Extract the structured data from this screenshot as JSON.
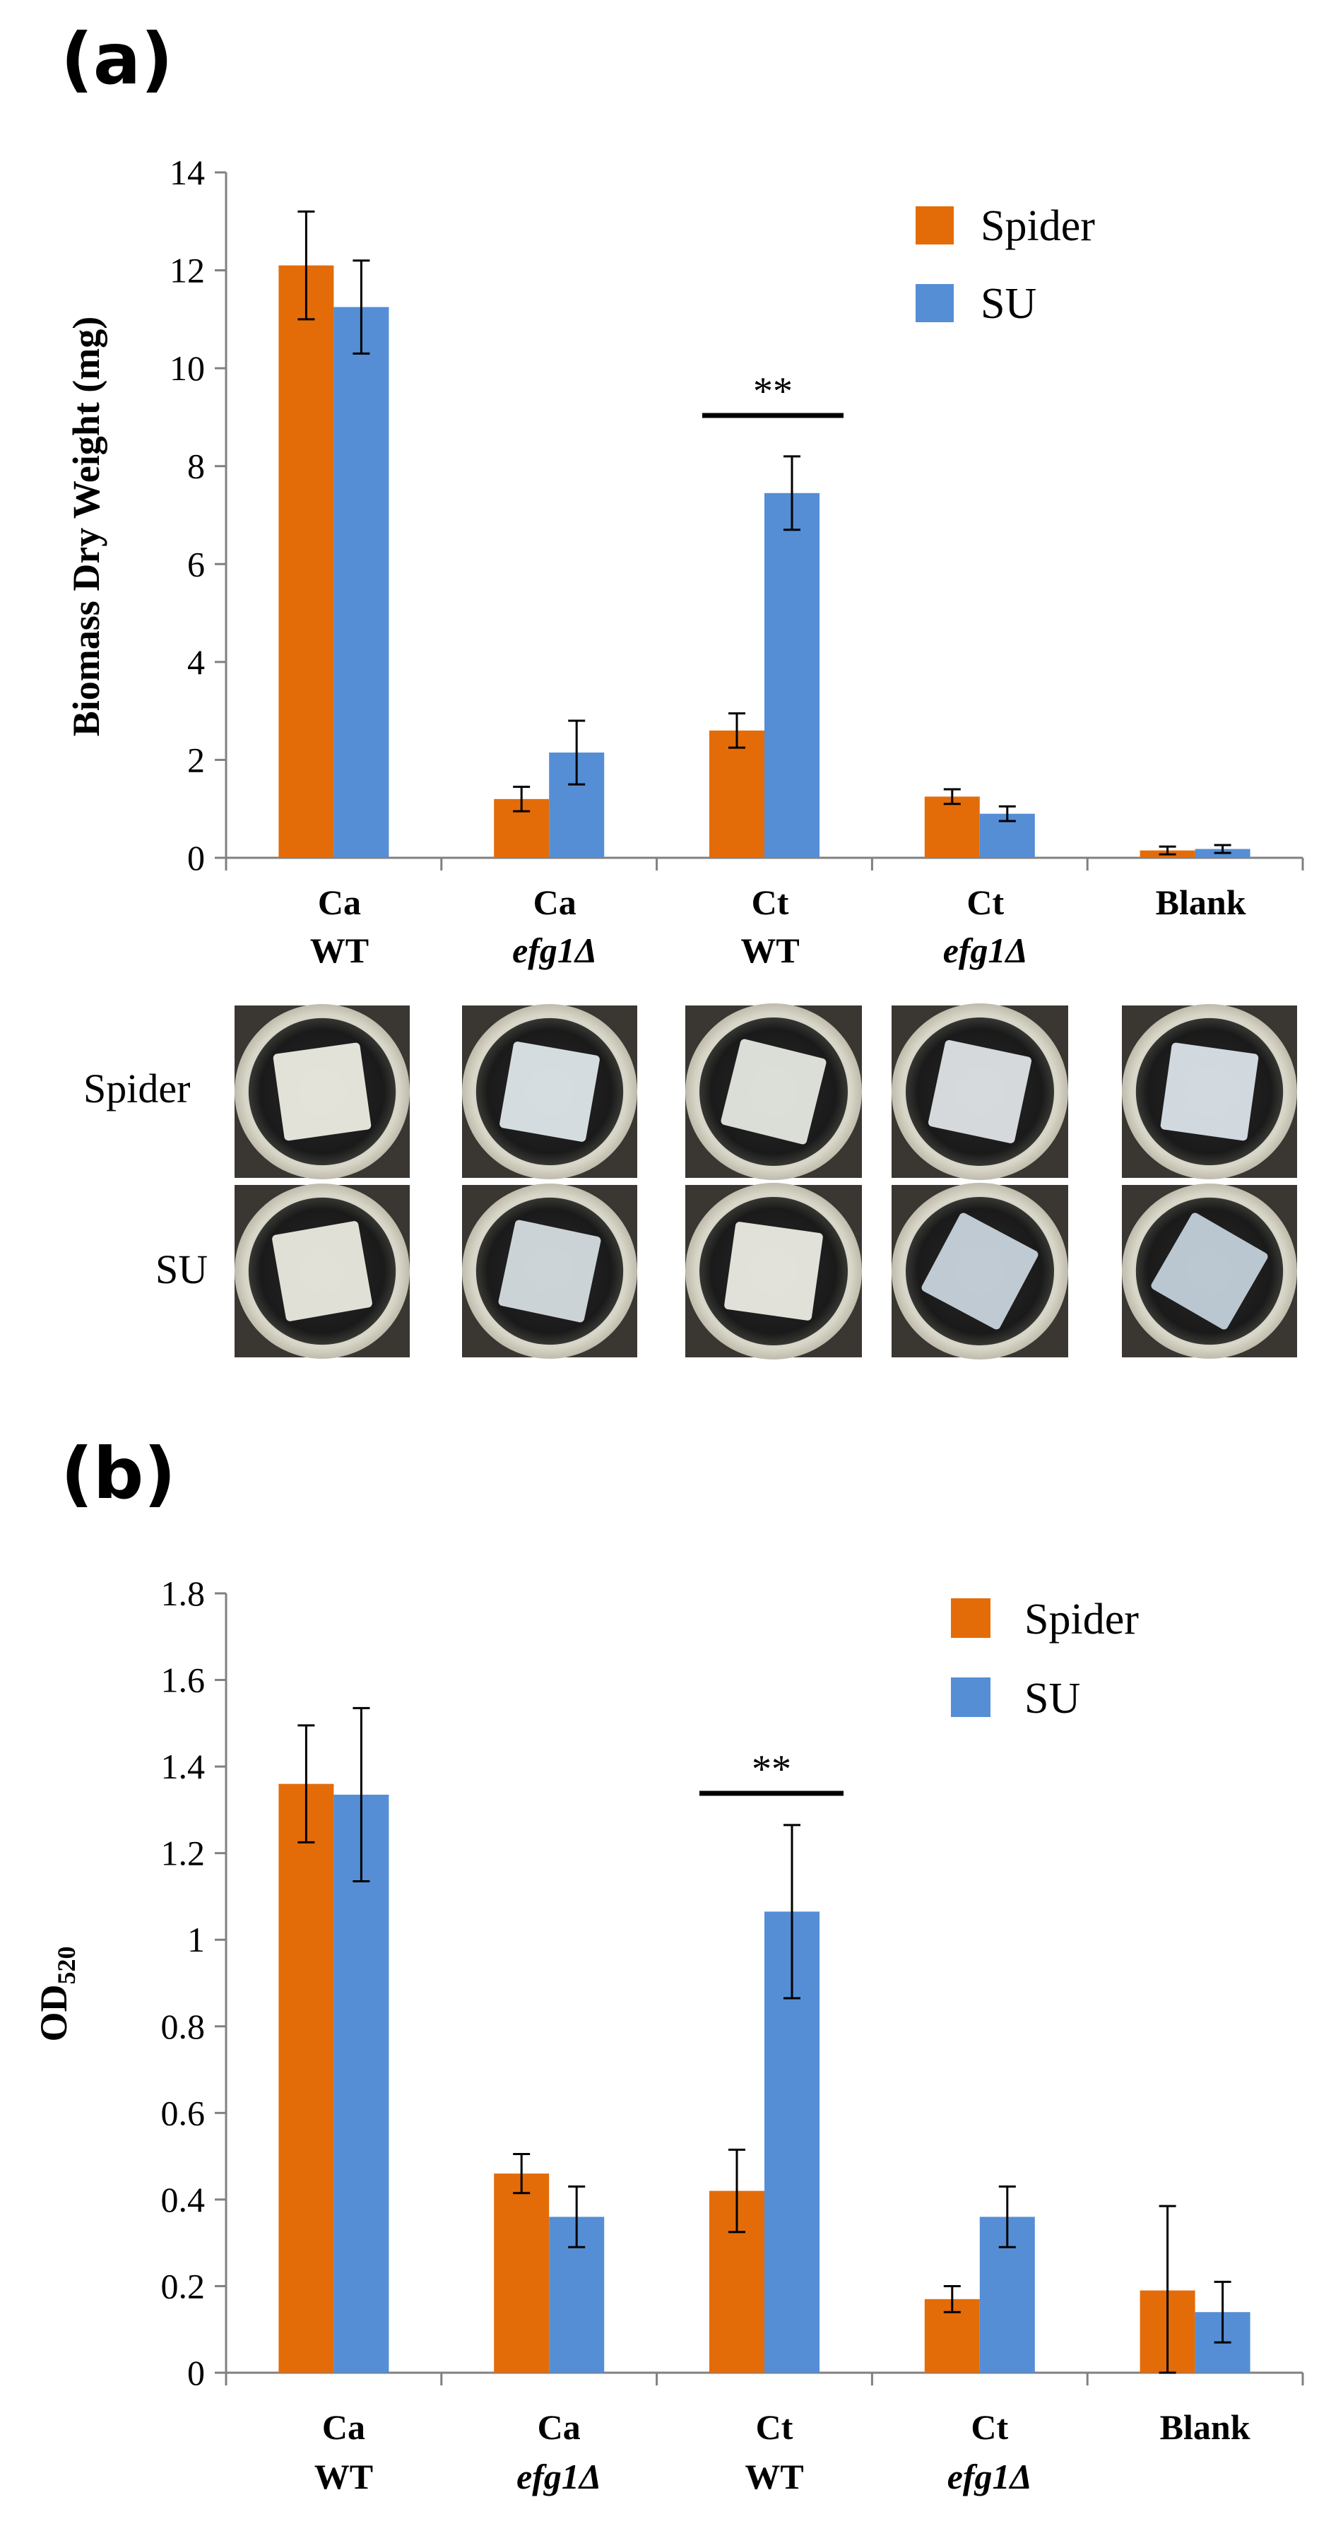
{
  "colors": {
    "spider": "#E36C09",
    "su": "#558ED5",
    "axis": "#808080"
  },
  "panel_a": {
    "label": "(a)",
    "photo_rows": [
      "Spider",
      "SU"
    ]
  },
  "panel_b": {
    "label": "(b)"
  },
  "chart_data": [
    {
      "type": "bar",
      "ylabel": "Biomass Dry Weight (mg)",
      "ylim": [
        0,
        14
      ],
      "yticks": [
        "0",
        "2",
        "4",
        "6",
        "8",
        "10",
        "12",
        "14"
      ],
      "categories": [
        {
          "line1": "Ca",
          "line2": "WT",
          "italic2": false
        },
        {
          "line1": "Ca",
          "line2": "efg1Δ",
          "italic2": true
        },
        {
          "line1": "Ct",
          "line2": "WT",
          "italic2": false
        },
        {
          "line1": "Ct",
          "line2": "efg1Δ",
          "italic2": true
        },
        {
          "line1": "Blank",
          "line2": "",
          "italic2": false
        }
      ],
      "series": [
        {
          "name": "Spider",
          "values": [
            12.1,
            1.2,
            2.6,
            1.25,
            0.15
          ],
          "errors": [
            1.1,
            0.25,
            0.35,
            0.15,
            0.08
          ]
        },
        {
          "name": "SU",
          "values": [
            11.25,
            2.15,
            7.45,
            0.9,
            0.18
          ],
          "errors": [
            0.95,
            0.65,
            0.75,
            0.15,
            0.08
          ]
        }
      ],
      "annotation": {
        "text": "**",
        "category": 2
      },
      "legend_position": "top-right"
    },
    {
      "type": "bar",
      "ylabel_main": "OD",
      "ylabel_sub": "520",
      "ylim": [
        0,
        1.8
      ],
      "yticks": [
        "0",
        "0.2",
        "0.4",
        "0.6",
        "0.8",
        "1",
        "1.2",
        "1.4",
        "1.6",
        "1.8"
      ],
      "categories": [
        {
          "line1": "Ca",
          "line2": "WT",
          "italic2": false
        },
        {
          "line1": "Ca",
          "line2": "efg1Δ",
          "italic2": true
        },
        {
          "line1": "Ct",
          "line2": "WT",
          "italic2": false
        },
        {
          "line1": "Ct",
          "line2": "efg1Δ",
          "italic2": true
        },
        {
          "line1": "Blank",
          "line2": "",
          "italic2": false
        }
      ],
      "series": [
        {
          "name": "Spider",
          "values": [
            1.36,
            0.46,
            0.42,
            0.17,
            0.19
          ],
          "errors": [
            0.135,
            0.045,
            0.095,
            0.03,
            0.195
          ]
        },
        {
          "name": "SU",
          "values": [
            1.335,
            0.36,
            1.065,
            0.36,
            0.14
          ],
          "errors": [
            0.2,
            0.07,
            0.2,
            0.07,
            0.07
          ]
        }
      ],
      "annotation": {
        "text": "**",
        "category": 2
      },
      "legend_position": "top-right"
    }
  ]
}
